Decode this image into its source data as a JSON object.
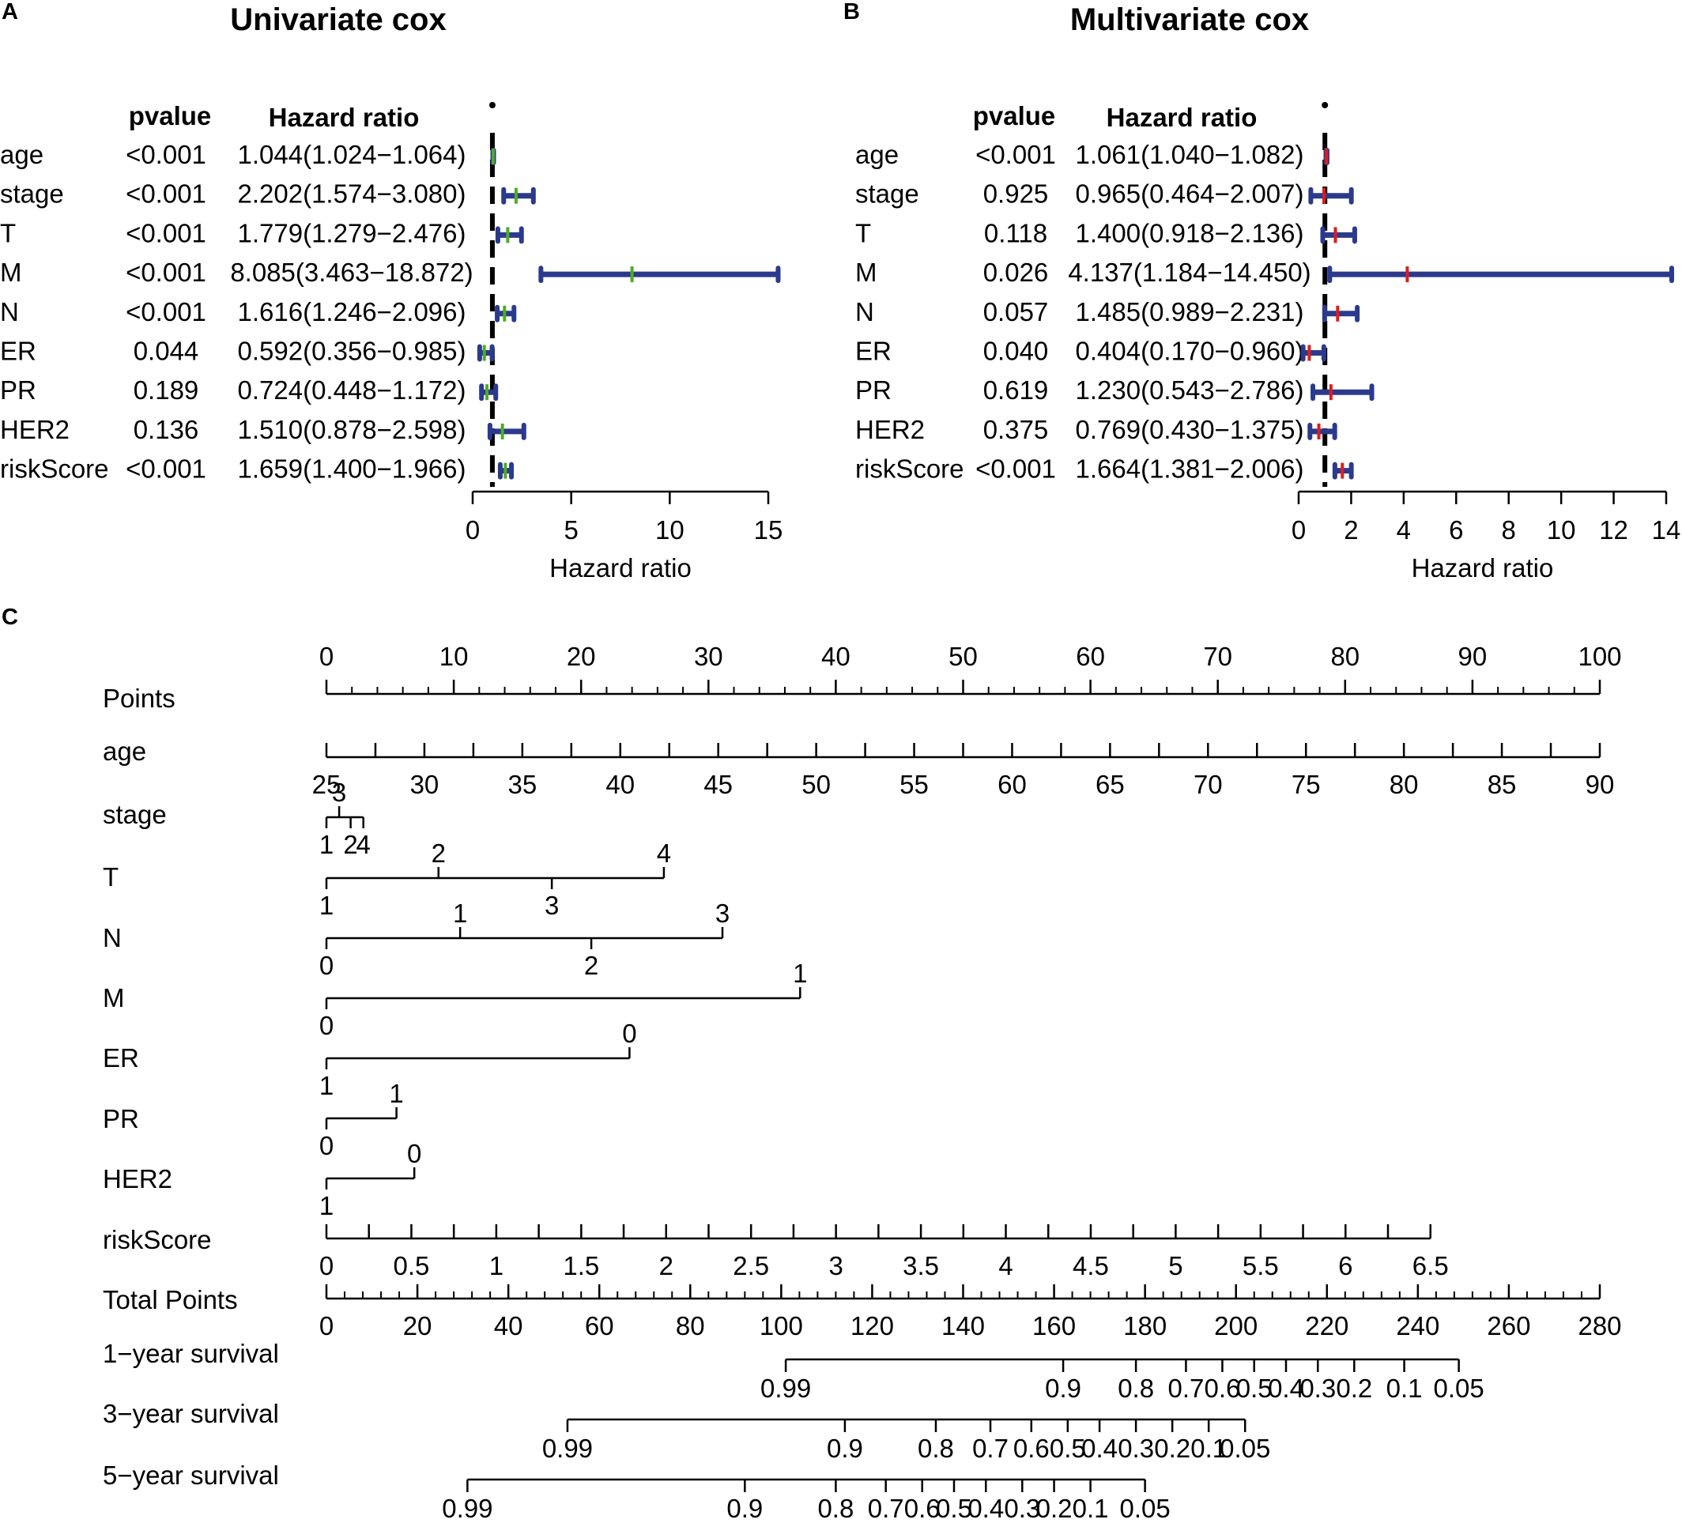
{
  "panels": {
    "A": {
      "letter": "A",
      "title": "Univariate cox"
    },
    "B": {
      "letter": "B",
      "title": "Multivariate cox"
    },
    "C": {
      "letter": "C"
    }
  },
  "table_headers": {
    "pvalue": "pvalue",
    "hazard": "Hazard ratio"
  },
  "chart_data": [
    {
      "type": "forest",
      "panel": "A",
      "title": "Univariate cox",
      "xlabel": "Hazard ratio",
      "xlim": [
        0,
        15
      ],
      "xticks": [
        0,
        5,
        10,
        15
      ],
      "reference_line": 1,
      "point_color": "#4dac26",
      "bar_color": "#2b3a8c",
      "rows": [
        {
          "label": "age",
          "pvalue": "<0.001",
          "hr_text": "1.044(1.024−1.064)",
          "hr": 1.044,
          "lo": 1.024,
          "hi": 1.064
        },
        {
          "label": "stage",
          "pvalue": "<0.001",
          "hr_text": "2.202(1.574−3.080)",
          "hr": 2.202,
          "lo": 1.574,
          "hi": 3.08
        },
        {
          "label": "T",
          "pvalue": "<0.001",
          "hr_text": "1.779(1.279−2.476)",
          "hr": 1.779,
          "lo": 1.279,
          "hi": 2.476
        },
        {
          "label": "M",
          "pvalue": "<0.001",
          "hr_text": "8.085(3.463−18.872)",
          "hr": 8.085,
          "lo": 3.463,
          "hi": 18.872
        },
        {
          "label": "N",
          "pvalue": "<0.001",
          "hr_text": "1.616(1.246−2.096)",
          "hr": 1.616,
          "lo": 1.246,
          "hi": 2.096
        },
        {
          "label": "ER",
          "pvalue": "0.044",
          "hr_text": "0.592(0.356−0.985)",
          "hr": 0.592,
          "lo": 0.356,
          "hi": 0.985
        },
        {
          "label": "PR",
          "pvalue": "0.189",
          "hr_text": "0.724(0.448−1.172)",
          "hr": 0.724,
          "lo": 0.448,
          "hi": 1.172
        },
        {
          "label": "HER2",
          "pvalue": "0.136",
          "hr_text": "1.510(0.878−2.598)",
          "hr": 1.51,
          "lo": 0.878,
          "hi": 2.598
        },
        {
          "label": "riskScore",
          "pvalue": "<0.001",
          "hr_text": "1.659(1.400−1.966)",
          "hr": 1.659,
          "lo": 1.4,
          "hi": 1.966
        }
      ]
    },
    {
      "type": "forest",
      "panel": "B",
      "title": "Multivariate cox",
      "xlabel": "Hazard ratio",
      "xlim": [
        0,
        14
      ],
      "xticks": [
        0,
        2,
        4,
        6,
        8,
        10,
        12,
        14
      ],
      "reference_line": 1,
      "point_color": "#e41a1c",
      "bar_color": "#2b3a8c",
      "rows": [
        {
          "label": "age",
          "pvalue": "<0.001",
          "hr_text": "1.061(1.040−1.082)",
          "hr": 1.061,
          "lo": 1.04,
          "hi": 1.082
        },
        {
          "label": "stage",
          "pvalue": "0.925",
          "hr_text": "0.965(0.464−2.007)",
          "hr": 0.965,
          "lo": 0.464,
          "hi": 2.007
        },
        {
          "label": "T",
          "pvalue": "0.118",
          "hr_text": "1.400(0.918−2.136)",
          "hr": 1.4,
          "lo": 0.918,
          "hi": 2.136
        },
        {
          "label": "M",
          "pvalue": "0.026",
          "hr_text": "4.137(1.184−14.450)",
          "hr": 4.137,
          "lo": 1.184,
          "hi": 14.45
        },
        {
          "label": "N",
          "pvalue": "0.057",
          "hr_text": "1.485(0.989−2.231)",
          "hr": 1.485,
          "lo": 0.989,
          "hi": 2.231
        },
        {
          "label": "ER",
          "pvalue": "0.040",
          "hr_text": "0.404(0.170−0.960)",
          "hr": 0.404,
          "lo": 0.17,
          "hi": 0.96
        },
        {
          "label": "PR",
          "pvalue": "0.619",
          "hr_text": "1.230(0.543−2.786)",
          "hr": 1.23,
          "lo": 0.543,
          "hi": 2.786
        },
        {
          "label": "HER2",
          "pvalue": "0.375",
          "hr_text": "0.769(0.430−1.375)",
          "hr": 0.769,
          "lo": 0.43,
          "hi": 1.375
        },
        {
          "label": "riskScore",
          "pvalue": "<0.001",
          "hr_text": "1.664(1.381−2.006)",
          "hr": 1.664,
          "lo": 1.381,
          "hi": 2.006
        }
      ]
    },
    {
      "type": "nomogram",
      "panel": "C",
      "points_scale": [
        0,
        100
      ],
      "rows": [
        {
          "label": "Points",
          "kind": "points",
          "range": [
            0,
            100
          ],
          "major": [
            0,
            10,
            20,
            30,
            40,
            50,
            60,
            70,
            80,
            90,
            100
          ],
          "minor_step": 2
        },
        {
          "label": "age",
          "kind": "continuous",
          "min": 25,
          "max": 90,
          "points": [
            0,
            100
          ],
          "labels": [
            25,
            30,
            35,
            40,
            45,
            50,
            55,
            60,
            65,
            70,
            75,
            80,
            85,
            90
          ]
        },
        {
          "label": "stage",
          "kind": "categorical",
          "ticks": [
            {
              "text": "3",
              "points": 1.0,
              "pos": "above"
            },
            {
              "text": "2",
              "points": 1.9,
              "pos": "below"
            },
            {
              "text": "1",
              "points": 0.0,
              "pos": "below"
            },
            {
              "text": "4",
              "points": 2.9,
              "pos": "below"
            }
          ]
        },
        {
          "label": "T",
          "kind": "categorical",
          "ticks": [
            {
              "text": "2",
              "points": 8.8,
              "pos": "above"
            },
            {
              "text": "4",
              "points": 26.5,
              "pos": "above"
            },
            {
              "text": "1",
              "points": 0.0,
              "pos": "below"
            },
            {
              "text": "3",
              "points": 17.7,
              "pos": "below"
            }
          ]
        },
        {
          "label": "N",
          "kind": "categorical",
          "ticks": [
            {
              "text": "1",
              "points": 10.5,
              "pos": "above"
            },
            {
              "text": "3",
              "points": 31.1,
              "pos": "above"
            },
            {
              "text": "0",
              "points": 0.0,
              "pos": "below"
            },
            {
              "text": "2",
              "points": 20.8,
              "pos": "below"
            }
          ]
        },
        {
          "label": "M",
          "kind": "categorical",
          "ticks": [
            {
              "text": "1",
              "points": 37.2,
              "pos": "above"
            },
            {
              "text": "0",
              "points": 0.0,
              "pos": "below"
            }
          ]
        },
        {
          "label": "ER",
          "kind": "categorical",
          "ticks": [
            {
              "text": "0",
              "points": 23.8,
              "pos": "above"
            },
            {
              "text": "1",
              "points": 0.0,
              "pos": "below"
            }
          ]
        },
        {
          "label": "PR",
          "kind": "categorical",
          "ticks": [
            {
              "text": "1",
              "points": 5.5,
              "pos": "above"
            },
            {
              "text": "0",
              "points": 0.0,
              "pos": "below"
            }
          ]
        },
        {
          "label": "HER2",
          "kind": "categorical",
          "ticks": [
            {
              "text": "0",
              "points": 6.9,
              "pos": "above"
            },
            {
              "text": "1",
              "points": 0.0,
              "pos": "below"
            }
          ]
        },
        {
          "label": "riskScore",
          "kind": "continuous",
          "min": 0,
          "max": 6.5,
          "points": [
            0,
            86.7
          ],
          "labels": [
            0,
            0.5,
            1,
            1.5,
            2,
            2.5,
            3,
            3.5,
            4,
            4.5,
            5,
            5.5,
            6,
            6.5
          ]
        },
        {
          "label": "Total Points",
          "kind": "total",
          "range": [
            0,
            280
          ],
          "major": [
            0,
            20,
            40,
            60,
            80,
            100,
            120,
            140,
            160,
            180,
            200,
            220,
            240,
            260,
            280
          ],
          "minor_step": 4
        },
        {
          "label": "1−year survival",
          "kind": "survival",
          "ticks": [
            {
              "text": "0.99",
              "total": 101
            },
            {
              "text": "0.9",
              "total": 162
            },
            {
              "text": "0.8",
              "total": 178
            },
            {
              "text": "0.7",
              "total": 189
            },
            {
              "text": "0.6",
              "total": 197
            },
            {
              "text": "0.5",
              "total": 204
            },
            {
              "text": "0.4",
              "total": 211
            },
            {
              "text": "0.3",
              "total": 218
            },
            {
              "text": "0.2",
              "total": 226
            },
            {
              "text": "0.1",
              "total": 237
            },
            {
              "text": "0.05",
              "total": 249
            }
          ]
        },
        {
          "label": "3−year survival",
          "kind": "survival",
          "ticks": [
            {
              "text": "0.99",
              "total": 53
            },
            {
              "text": "0.9",
              "total": 114
            },
            {
              "text": "0.8",
              "total": 134
            },
            {
              "text": "0.7",
              "total": 146
            },
            {
              "text": "0.6",
              "total": 155
            },
            {
              "text": "0.5",
              "total": 163
            },
            {
              "text": "0.4",
              "total": 170
            },
            {
              "text": "0.3",
              "total": 178
            },
            {
              "text": "0.2",
              "total": 186
            },
            {
              "text": "0.1",
              "total": 194
            },
            {
              "text": "0.05",
              "total": 202
            }
          ]
        },
        {
          "label": "5−year survival",
          "kind": "survival",
          "ticks": [
            {
              "text": "0.99",
              "total": 31
            },
            {
              "text": "0.9",
              "total": 92
            },
            {
              "text": "0.8",
              "total": 112
            },
            {
              "text": "0.7",
              "total": 123
            },
            {
              "text": "0.6",
              "total": 131
            },
            {
              "text": "0.5",
              "total": 138
            },
            {
              "text": "0.4",
              "total": 145
            },
            {
              "text": "0.3",
              "total": 153
            },
            {
              "text": "0.2",
              "total": 160
            },
            {
              "text": "0.1",
              "total": 168
            },
            {
              "text": "0.05",
              "total": 180
            }
          ]
        }
      ]
    }
  ]
}
